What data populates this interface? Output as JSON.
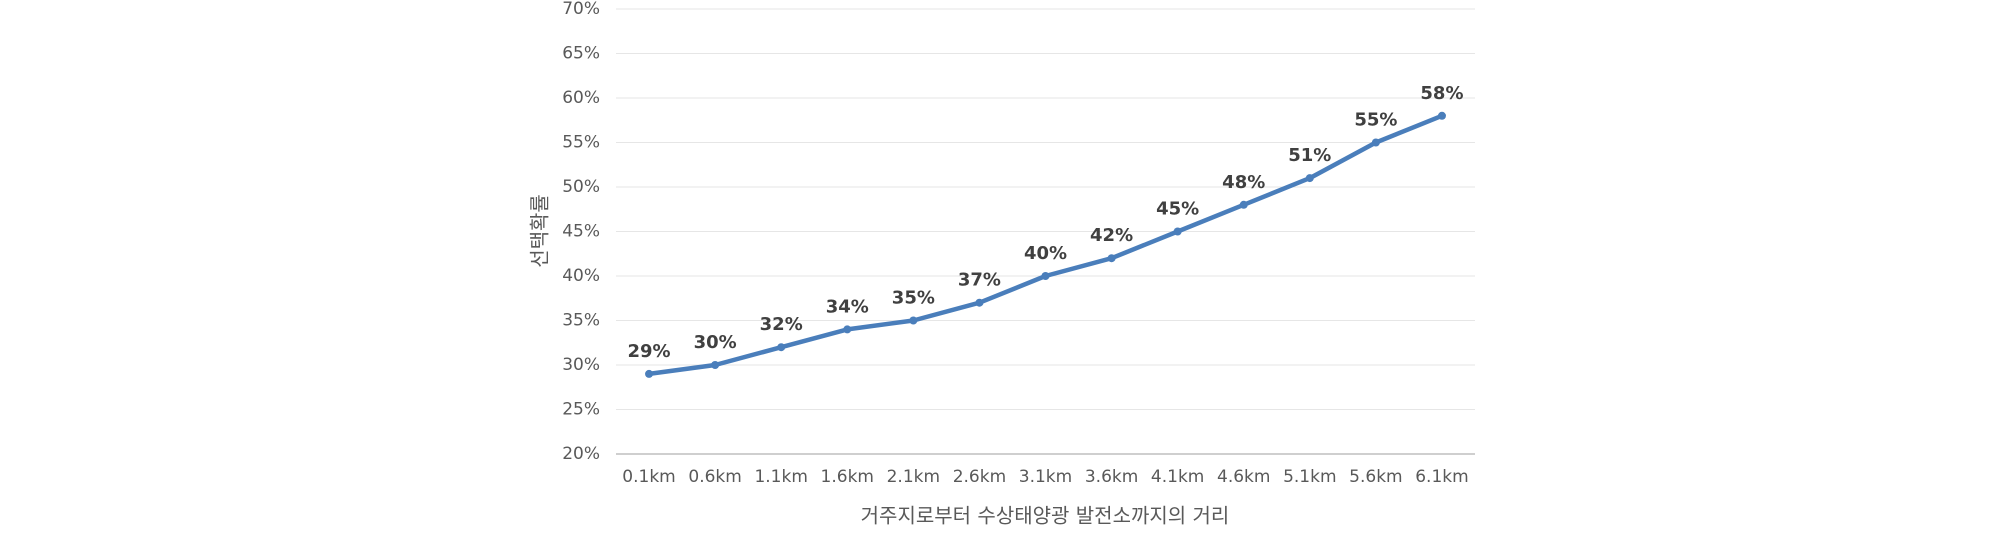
{
  "chart_data": {
    "type": "line",
    "x_label": "거주지로부터 수상태양광 발전소까지의 거리",
    "y_label": "선택확률",
    "categories": [
      "0.1km",
      "0.6km",
      "1.1km",
      "1.6km",
      "2.1km",
      "2.6km",
      "3.1km",
      "3.6km",
      "4.1km",
      "4.6km",
      "5.1km",
      "5.6km",
      "6.1km"
    ],
    "series": [
      {
        "color": "#4a7ebb",
        "values": [
          29,
          30,
          32,
          34,
          35,
          37,
          40,
          42,
          45,
          48,
          51,
          55,
          58
        ],
        "value_labels": [
          "29%",
          "30%",
          "32%",
          "34%",
          "35%",
          "37%",
          "40%",
          "42%",
          "45%",
          "48%",
          "51%",
          "55%",
          "58%"
        ]
      }
    ],
    "ylim": [
      20,
      70
    ],
    "yticks": [
      {
        "value": 20,
        "label": "20%"
      },
      {
        "value": 25,
        "label": "25%"
      },
      {
        "value": 30,
        "label": "30%"
      },
      {
        "value": 35,
        "label": "35%"
      },
      {
        "value": 40,
        "label": "40%"
      },
      {
        "value": 45,
        "label": "45%"
      },
      {
        "value": 50,
        "label": "50%"
      },
      {
        "value": 55,
        "label": "55%"
      },
      {
        "value": 60,
        "label": "60%"
      },
      {
        "value": 65,
        "label": "65%"
      },
      {
        "value": 70,
        "label": "70%"
      }
    ],
    "grid": true
  }
}
